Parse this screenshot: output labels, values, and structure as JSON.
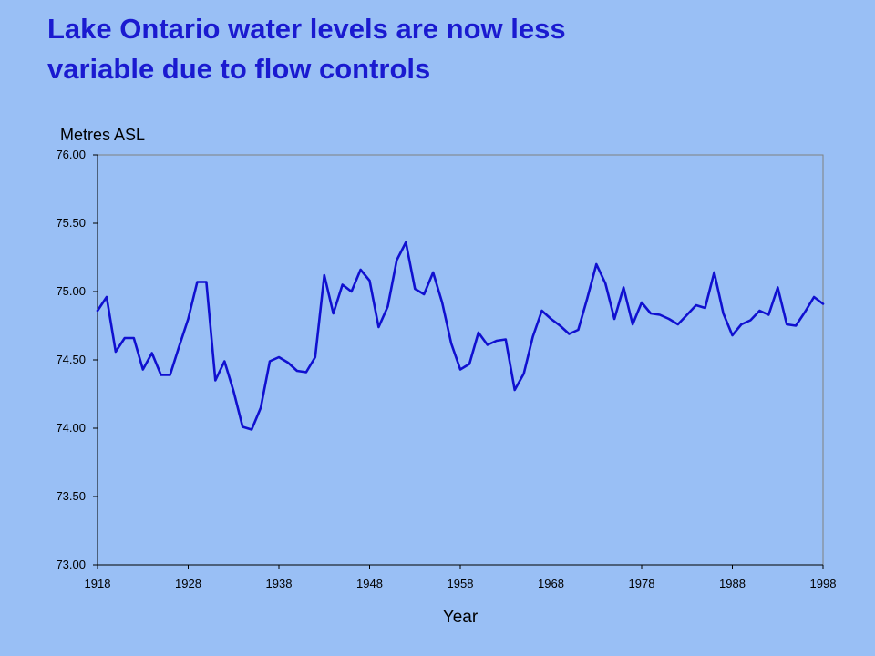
{
  "slide": {
    "title_line1": "Lake Ontario water levels are now less",
    "title_line2": "variable due to flow controls"
  },
  "colors": {
    "background": "#99bff5",
    "title": "#1a1ad0",
    "series": "#1010d0",
    "plot_area": "#99bff5",
    "axis": "#000000"
  },
  "chart_data": {
    "type": "line",
    "title": "",
    "xlabel": "Year",
    "ylabel": "Metres ASL",
    "xlim": [
      1918,
      1998
    ],
    "ylim": [
      73.0,
      76.0
    ],
    "x_ticks": [
      "1918",
      "1928",
      "1938",
      "1948",
      "1958",
      "1968",
      "1978",
      "1988",
      "1998"
    ],
    "y_ticks": [
      "73.00",
      "73.50",
      "74.00",
      "74.50",
      "75.00",
      "75.50",
      "76.00"
    ],
    "grid": false,
    "legend": "none",
    "series": [
      {
        "x": [
          1918,
          1919,
          1920,
          1921,
          1922,
          1923,
          1924,
          1925,
          1926,
          1927,
          1928,
          1929,
          1930,
          1931,
          1932,
          1933,
          1934,
          1935,
          1936,
          1937,
          1938,
          1939,
          1940,
          1941,
          1942,
          1943,
          1944,
          1945,
          1946,
          1947,
          1948,
          1949,
          1950,
          1951,
          1952,
          1953,
          1954,
          1955,
          1956,
          1957,
          1958,
          1959,
          1960,
          1961,
          1962,
          1963,
          1964,
          1965,
          1966,
          1967,
          1968,
          1969,
          1970,
          1971,
          1972,
          1973,
          1974,
          1975,
          1976,
          1977,
          1978,
          1979,
          1980,
          1981,
          1982,
          1983,
          1984,
          1985,
          1986,
          1987,
          1988,
          1989,
          1990,
          1991,
          1992,
          1993,
          1994,
          1995,
          1996,
          1997,
          1998
        ],
        "values": [
          74.86,
          74.96,
          74.56,
          74.66,
          74.66,
          74.43,
          74.55,
          74.39,
          74.39,
          74.6,
          74.8,
          75.07,
          75.07,
          74.35,
          74.49,
          74.27,
          74.01,
          73.99,
          74.15,
          74.49,
          74.52,
          74.48,
          74.42,
          74.41,
          74.52,
          75.12,
          74.84,
          75.05,
          75.0,
          75.16,
          75.08,
          74.74,
          74.89,
          75.23,
          75.36,
          75.02,
          74.98,
          75.14,
          74.92,
          74.62,
          74.43,
          74.47,
          74.7,
          74.61,
          74.64,
          74.65,
          74.28,
          74.4,
          74.67,
          74.86,
          74.8,
          74.75,
          74.69,
          74.72,
          74.95,
          75.2,
          75.06,
          74.8,
          75.03,
          74.76,
          74.92,
          74.84,
          74.83,
          74.8,
          74.76,
          74.83,
          74.9,
          74.88,
          75.14,
          74.84,
          74.68,
          74.76,
          74.79,
          74.86,
          74.83,
          75.03,
          74.76,
          74.75,
          74.85,
          74.96,
          74.91
        ]
      }
    ]
  }
}
